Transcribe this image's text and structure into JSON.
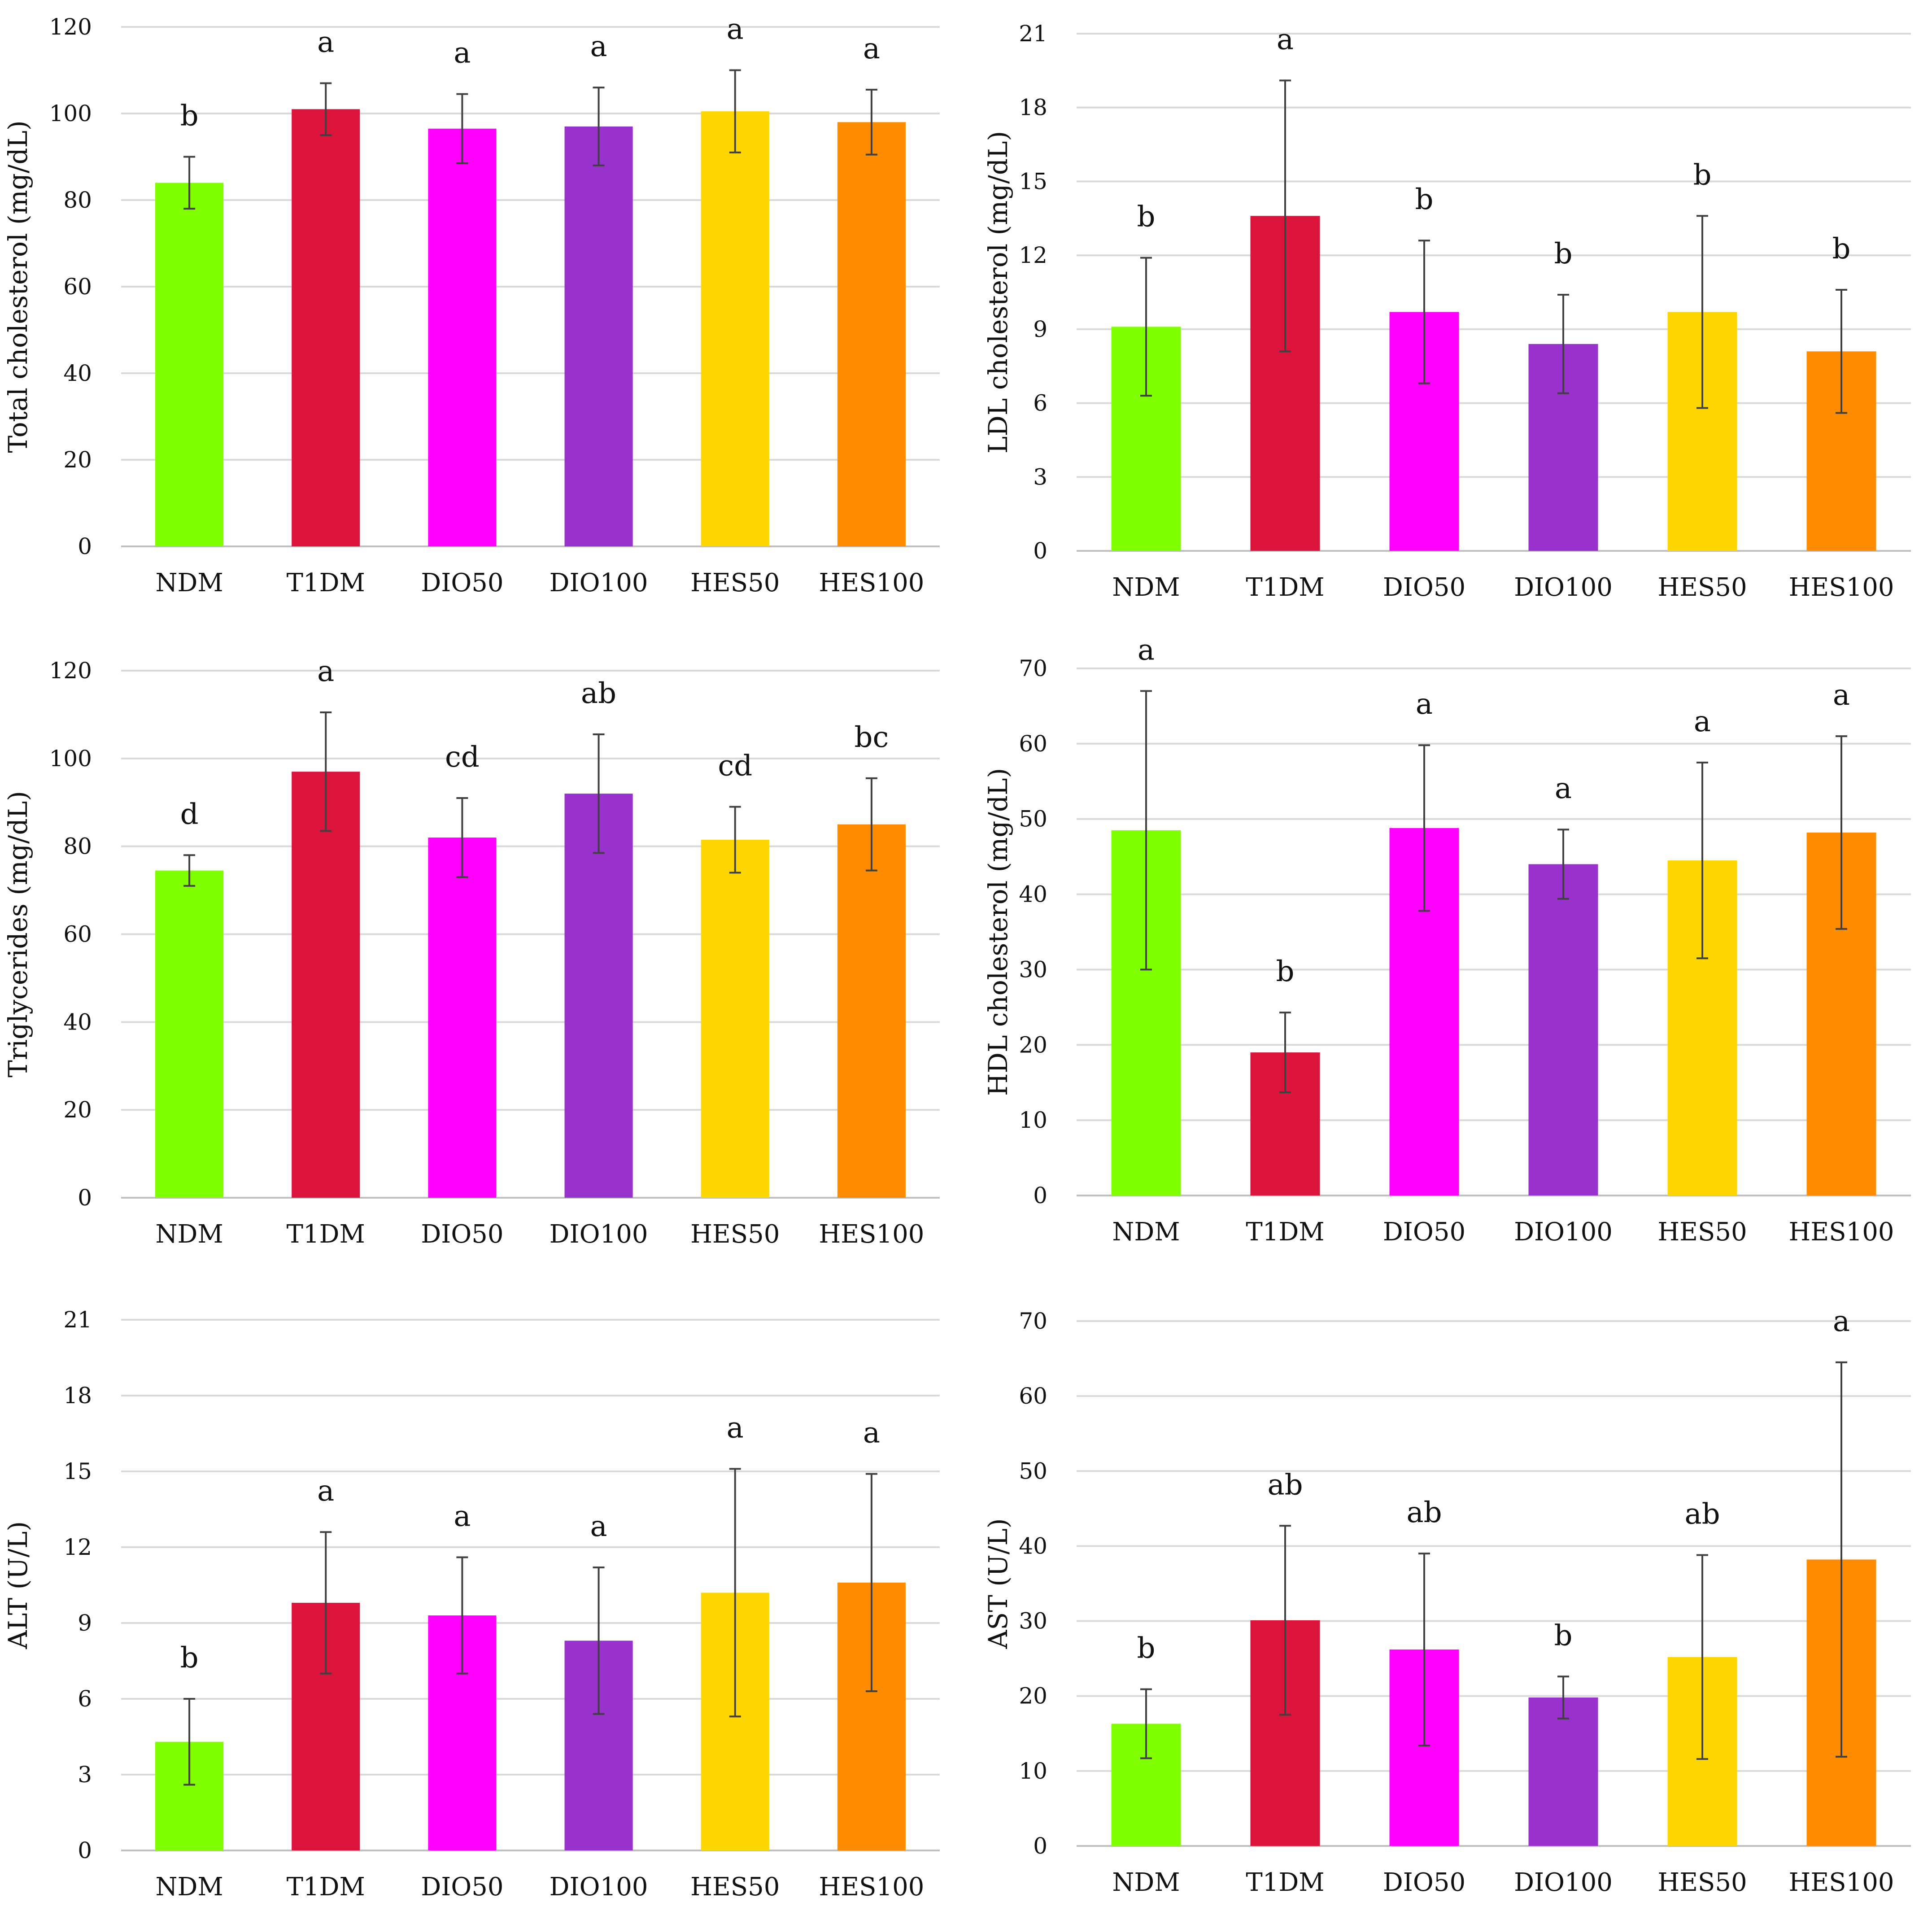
{
  "categories": [
    "NDM",
    "T1DM",
    "DIO50",
    "DIO100",
    "HES50",
    "HES100"
  ],
  "colors": [
    "#80ff00",
    "#dc143c",
    "#ff00ff",
    "#9932cc",
    "#ffd700",
    "#ff8c00"
  ],
  "chart_data": [
    {
      "type": "bar",
      "title": "",
      "xlabel": "",
      "ylabel": "Total cholesterol (mg/dL)",
      "ylim": [
        0,
        120
      ],
      "yticks": [
        0,
        20,
        40,
        60,
        80,
        100,
        120
      ],
      "categories": [
        "NDM",
        "T1DM",
        "DIO50",
        "DIO100",
        "HES50",
        "HES100"
      ],
      "values": [
        84,
        101,
        96.5,
        97,
        100.5,
        98
      ],
      "errors": [
        6,
        6,
        8,
        9,
        9.5,
        7.5
      ],
      "significance": [
        "b",
        "a",
        "a",
        "a",
        "a",
        "a"
      ]
    },
    {
      "type": "bar",
      "title": "",
      "xlabel": "",
      "ylabel": "LDL cholesterol (mg/dL)",
      "ylim": [
        0,
        21
      ],
      "yticks": [
        0,
        3,
        6,
        9,
        12,
        15,
        18,
        21
      ],
      "categories": [
        "NDM",
        "T1DM",
        "DIO50",
        "DIO100",
        "HES50",
        "HES100"
      ],
      "values": [
        9.1,
        13.6,
        9.7,
        8.4,
        9.7,
        8.1
      ],
      "errors": [
        2.8,
        5.5,
        2.9,
        2.0,
        3.9,
        2.5
      ],
      "significance": [
        "b",
        "a",
        "b",
        "b",
        "b",
        "b"
      ]
    },
    {
      "type": "bar",
      "title": "",
      "xlabel": "",
      "ylabel": "Triglycerides (mg/dL)",
      "ylim": [
        0,
        120
      ],
      "yticks": [
        0,
        20,
        40,
        60,
        80,
        100,
        120
      ],
      "categories": [
        "NDM",
        "T1DM",
        "DIO50",
        "DIO100",
        "HES50",
        "HES100"
      ],
      "values": [
        74.5,
        97,
        82,
        92,
        81.5,
        85
      ],
      "errors": [
        3.5,
        13.5,
        9,
        13.5,
        7.5,
        10.5
      ],
      "significance": [
        "d",
        "a",
        "cd",
        "ab",
        "cd",
        "bc"
      ]
    },
    {
      "type": "bar",
      "title": "",
      "xlabel": "",
      "ylabel": "HDL cholesterol (mg/dL)",
      "ylim": [
        0,
        70
      ],
      "yticks": [
        0,
        10,
        20,
        30,
        40,
        50,
        60,
        70
      ],
      "categories": [
        "NDM",
        "T1DM",
        "DIO50",
        "DIO100",
        "HES50",
        "HES100"
      ],
      "values": [
        48.5,
        19,
        48.8,
        44,
        44.5,
        48.2
      ],
      "errors": [
        18.5,
        5.3,
        11,
        4.6,
        13,
        12.8
      ],
      "significance": [
        "a",
        "b",
        "a",
        "a",
        "a",
        "a"
      ]
    },
    {
      "type": "bar",
      "title": "",
      "xlabel": "",
      "ylabel": "ALT (U/L)",
      "ylim": [
        0,
        21
      ],
      "yticks": [
        0,
        3,
        6,
        9,
        12,
        15,
        18,
        21
      ],
      "categories": [
        "NDM",
        "T1DM",
        "DIO50",
        "DIO100",
        "HES50",
        "HES100"
      ],
      "values": [
        4.3,
        9.8,
        9.3,
        8.3,
        10.2,
        10.6
      ],
      "errors": [
        1.7,
        2.8,
        2.3,
        2.9,
        4.9,
        4.3
      ],
      "significance": [
        "b",
        "a",
        "a",
        "a",
        "a",
        "a"
      ]
    },
    {
      "type": "bar",
      "title": "",
      "xlabel": "",
      "ylabel": "AST (U/L)",
      "ylim": [
        0,
        70
      ],
      "yticks": [
        0,
        10,
        20,
        30,
        40,
        50,
        60,
        70
      ],
      "categories": [
        "NDM",
        "T1DM",
        "DIO50",
        "DIO100",
        "HES50",
        "HES100"
      ],
      "values": [
        16.3,
        30.1,
        26.2,
        19.8,
        25.2,
        38.2
      ],
      "errors": [
        4.6,
        12.6,
        12.8,
        2.8,
        13.6,
        26.3
      ],
      "significance": [
        "b",
        "ab",
        "ab",
        "b",
        "ab",
        "a"
      ]
    }
  ]
}
